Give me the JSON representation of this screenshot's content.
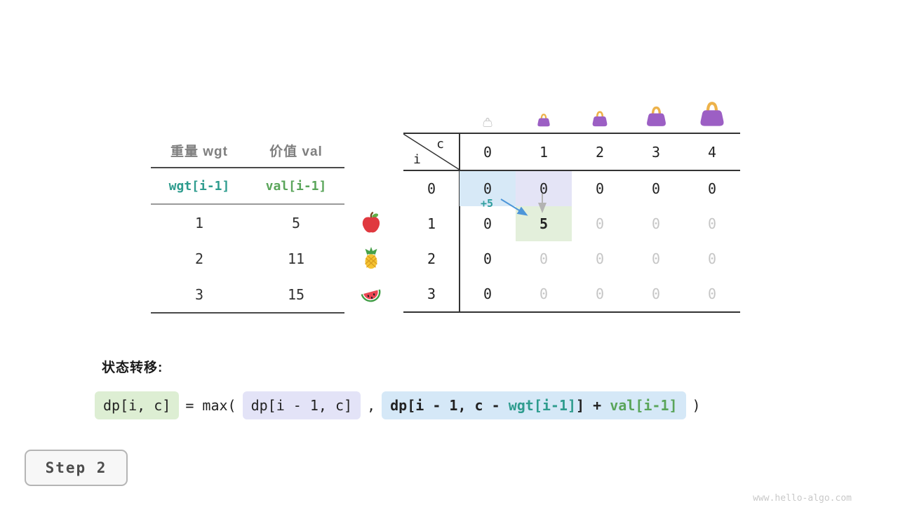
{
  "page": {
    "watermark": "www.hello-algo.com",
    "step_label": "Step 2",
    "transition_label": "状态转移:"
  },
  "item_table": {
    "headers": {
      "wgt": "重量 wgt",
      "val": "价值 val"
    },
    "var_row": {
      "wgt": "wgt[i-1]",
      "val": "val[i-1]"
    },
    "rows": [
      {
        "wgt": "1",
        "val": "5",
        "fruit": "apple"
      },
      {
        "wgt": "2",
        "val": "11",
        "fruit": "pineapple"
      },
      {
        "wgt": "3",
        "val": "15",
        "fruit": "watermelon"
      }
    ]
  },
  "dp_table": {
    "corner": {
      "row_var": "i",
      "col_var": "c"
    },
    "col_headers": [
      "0",
      "1",
      "2",
      "3",
      "4"
    ],
    "annotation": "+5",
    "rows": [
      {
        "header": "0",
        "cells": [
          {
            "t": "0",
            "state": "ref-left"
          },
          {
            "t": "0",
            "state": "ref-up"
          },
          {
            "t": "0"
          },
          {
            "t": "0"
          },
          {
            "t": "0"
          }
        ]
      },
      {
        "header": "1",
        "cells": [
          {
            "t": "0"
          },
          {
            "t": "5",
            "state": "result"
          },
          {
            "t": "0",
            "state": "future"
          },
          {
            "t": "0",
            "state": "future"
          },
          {
            "t": "0",
            "state": "future"
          }
        ]
      },
      {
        "header": "2",
        "cells": [
          {
            "t": "0"
          },
          {
            "t": "0",
            "state": "future"
          },
          {
            "t": "0",
            "state": "future"
          },
          {
            "t": "0",
            "state": "future"
          },
          {
            "t": "0",
            "state": "future"
          }
        ]
      },
      {
        "header": "3",
        "cells": [
          {
            "t": "0"
          },
          {
            "t": "0",
            "state": "future"
          },
          {
            "t": "0",
            "state": "future"
          },
          {
            "t": "0",
            "state": "future"
          },
          {
            "t": "0",
            "state": "future"
          }
        ]
      }
    ],
    "bags": [
      {
        "capacity": "0",
        "style": "empty",
        "size": 14
      },
      {
        "capacity": "1",
        "style": "purple",
        "size": 20
      },
      {
        "capacity": "2",
        "style": "purple",
        "size": 24
      },
      {
        "capacity": "3",
        "style": "purple",
        "size": 31
      },
      {
        "capacity": "4",
        "style": "purple",
        "size": 38
      }
    ]
  },
  "formula": {
    "lhs": "dp[i, c]",
    "eq_max": "= max(",
    "arg1": "dp[i - 1, c]",
    "comma": ",",
    "arg2_prefix": "dp[i - 1, c - ",
    "arg2_wgt": "wgt[i-1]",
    "arg2_suffix": "] + ",
    "arg2_val": "val[i-1]",
    "close": ")"
  },
  "colors": {
    "wgt_accent": "#2e9c8e",
    "val_accent": "#5aa55a",
    "annotation_teal": "#2f9e9e",
    "arrow_blue": "#4d96d9",
    "hl_blue": "#d7e9f7",
    "hl_lavender": "#e4e4f6",
    "hl_green": "#e3efdb",
    "bag_purple": "#9c5fc4",
    "bag_handle": "#edb24a"
  }
}
